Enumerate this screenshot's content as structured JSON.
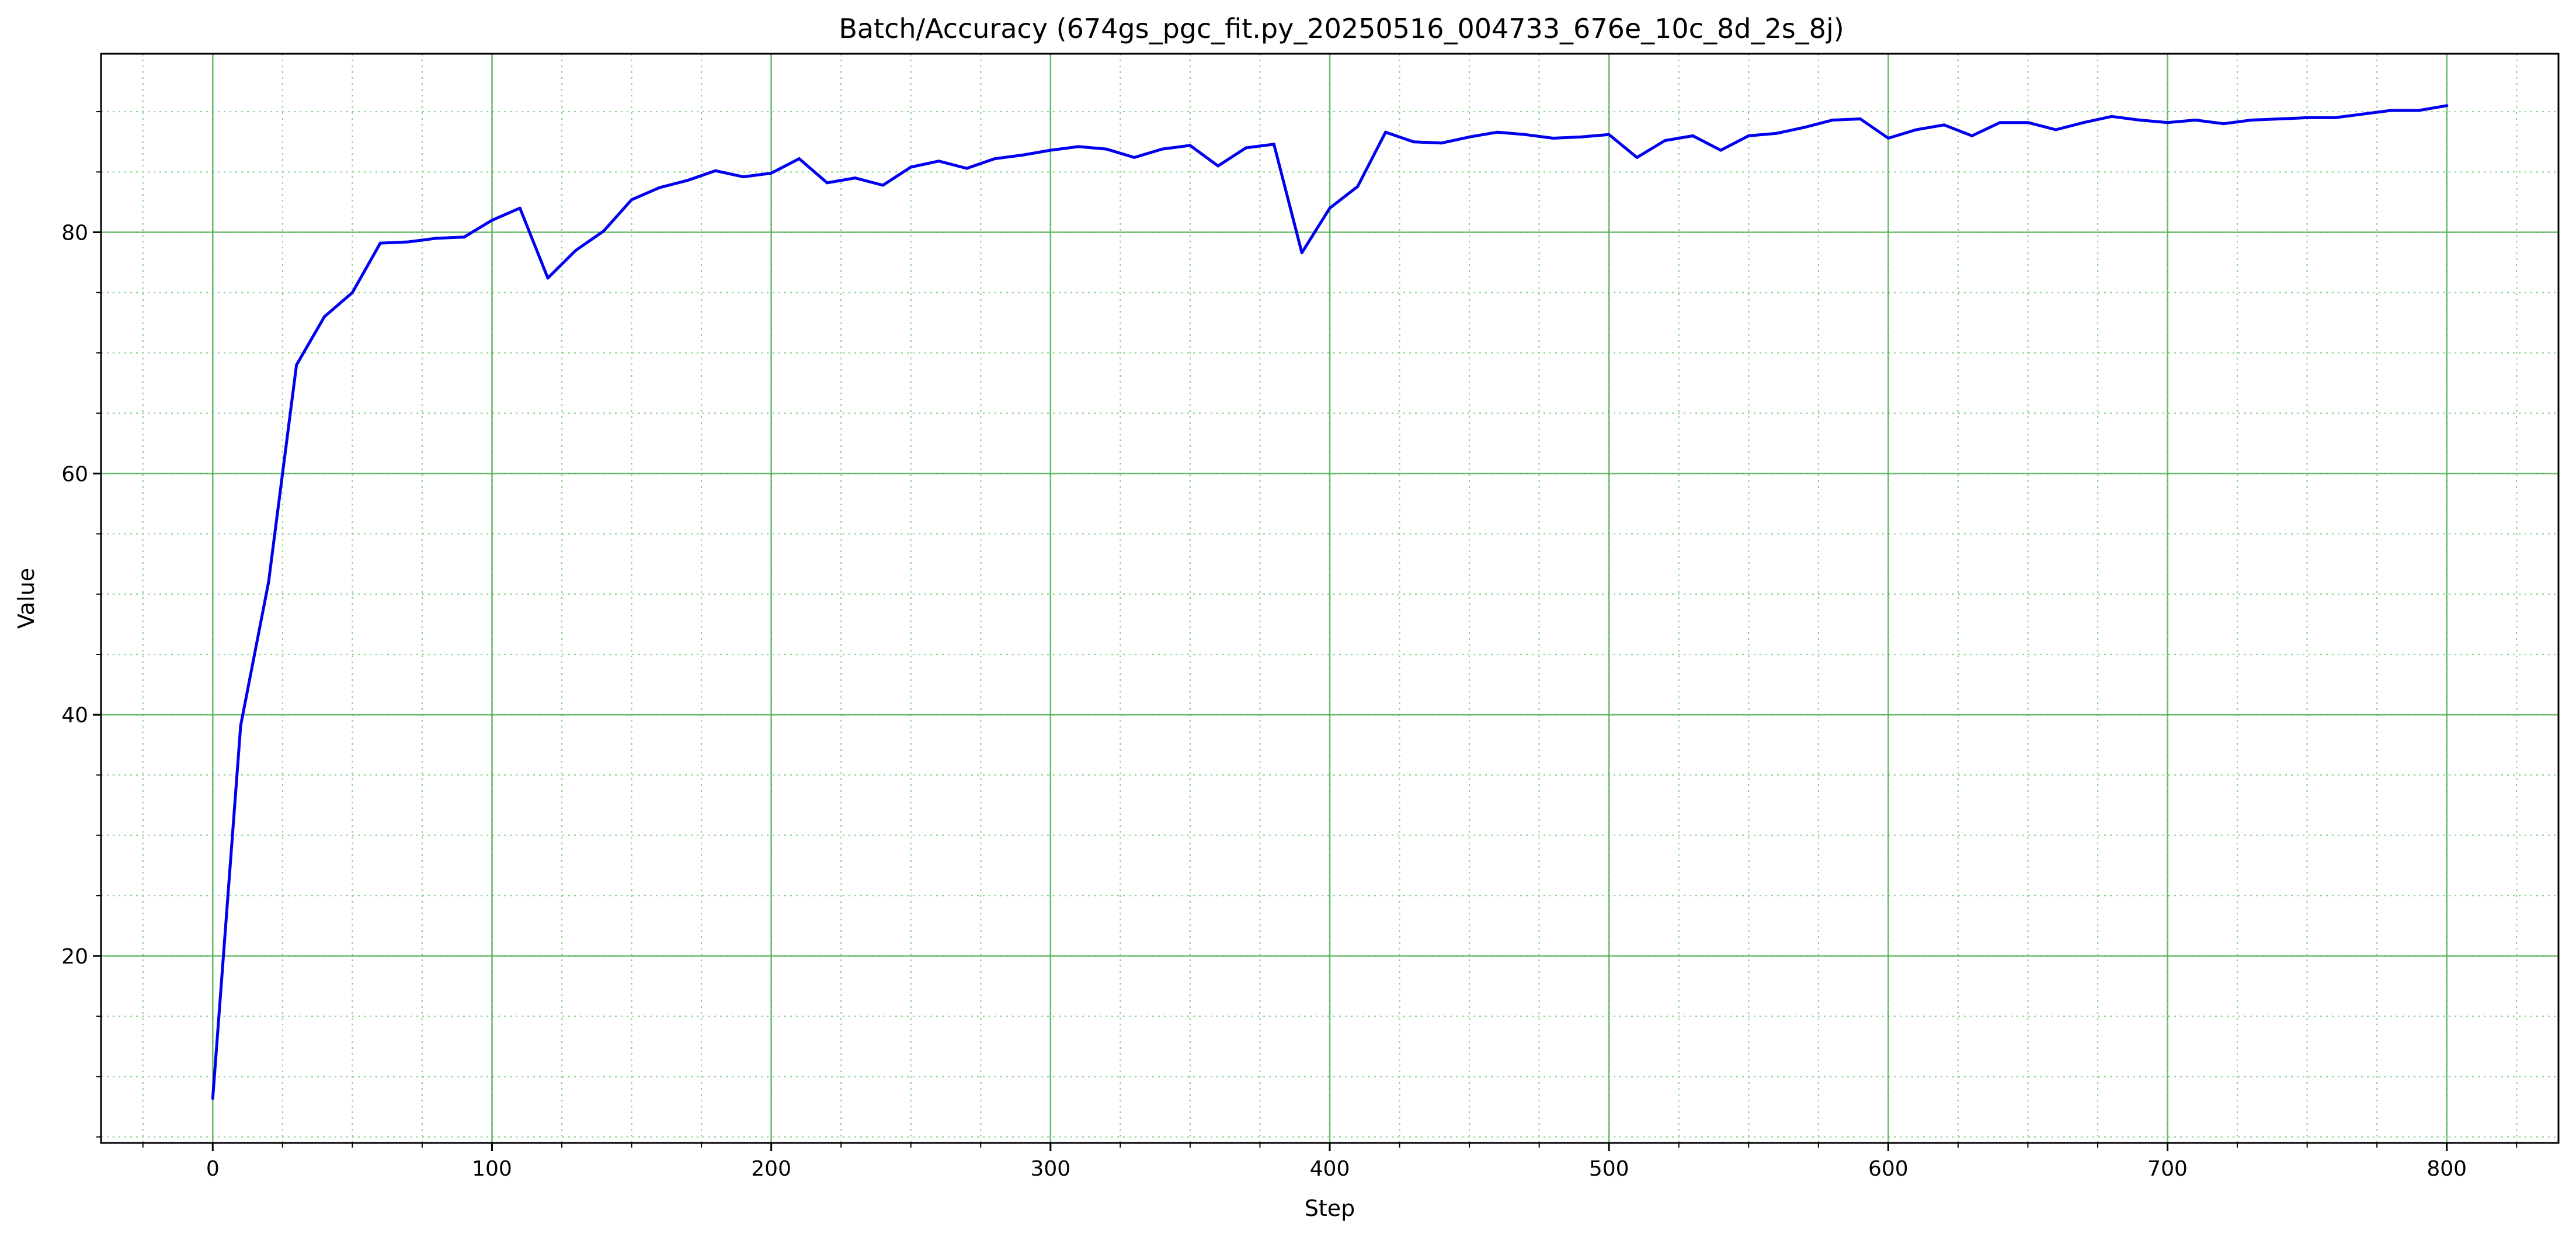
{
  "chart_data": {
    "type": "line",
    "title": "Batch/Accuracy (674gs_pgc_fit.py_20250516_004733_676e_10c_8d_2s_8j)",
    "xlabel": "Step",
    "ylabel": "Value",
    "xlim": [
      -40,
      840
    ],
    "ylim": [
      4.5,
      94.8
    ],
    "x_ticks": [
      0,
      100,
      200,
      300,
      400,
      500,
      600,
      700,
      800
    ],
    "y_ticks": [
      20,
      40,
      60,
      80
    ],
    "x_minor_step": 25,
    "y_minor_step": 5,
    "grid": "major solid green, minor dotted green",
    "colors": {
      "line": "#0000ee",
      "grid_major": "#4caf50",
      "grid_minor": "#8fd18f",
      "axes": "#000000"
    },
    "series": [
      {
        "x": [
          0,
          10,
          20,
          30,
          40,
          50,
          60,
          70,
          80,
          90,
          100,
          110,
          120,
          130,
          140,
          150,
          160,
          170,
          180,
          190,
          200,
          210,
          220,
          230,
          240,
          250,
          260,
          270,
          280,
          290,
          300,
          310,
          320,
          330,
          340,
          350,
          360,
          370,
          380,
          390,
          400,
          410,
          420,
          430,
          440,
          450,
          460,
          470,
          480,
          490,
          500,
          510,
          520,
          530,
          540,
          550,
          560,
          570,
          580,
          590,
          600,
          610,
          620,
          630,
          640,
          650,
          660,
          670,
          680,
          690,
          700,
          710,
          720,
          730,
          740,
          750,
          760,
          770,
          780,
          790,
          800
        ],
        "values": [
          8.2,
          39.1,
          51.0,
          69.0,
          73.0,
          75.0,
          79.1,
          79.2,
          79.5,
          79.6,
          81.0,
          82.0,
          76.2,
          78.5,
          80.1,
          82.7,
          83.7,
          84.3,
          85.1,
          84.6,
          84.9,
          86.1,
          84.1,
          84.5,
          83.9,
          85.4,
          85.9,
          85.3,
          86.1,
          86.4,
          86.8,
          87.1,
          86.9,
          86.2,
          86.9,
          87.2,
          85.5,
          87.0,
          87.3,
          78.3,
          82.0,
          83.8,
          88.3,
          87.5,
          87.4,
          87.9,
          88.3,
          88.1,
          87.8,
          87.9,
          88.1,
          86.2,
          87.6,
          88.0,
          86.8,
          88.0,
          88.2,
          88.7,
          89.3,
          89.4,
          87.8,
          88.5,
          88.9,
          88.0,
          89.1,
          89.1,
          88.5,
          89.1,
          89.6,
          89.3,
          89.1,
          89.3,
          89.0,
          89.3,
          89.4,
          89.5,
          89.5,
          89.8,
          90.1,
          90.1,
          90.5
        ]
      }
    ]
  }
}
